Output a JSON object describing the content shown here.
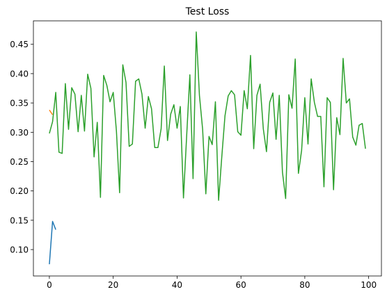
{
  "chart_data": {
    "type": "line",
    "title": "Test Loss",
    "xlabel": "",
    "ylabel": "",
    "xlim": [
      -5,
      104
    ],
    "ylim": [
      0.055,
      0.49
    ],
    "xticks": [
      0,
      20,
      40,
      60,
      80,
      100
    ],
    "yticks": [
      0.1,
      0.15,
      0.2,
      0.25,
      0.3,
      0.35,
      0.4,
      0.45
    ],
    "xtick_labels": [
      "0",
      "20",
      "40",
      "60",
      "80",
      "100"
    ],
    "ytick_labels": [
      "0.10",
      "0.15",
      "0.20",
      "0.25",
      "0.30",
      "0.35",
      "0.40",
      "0.45"
    ],
    "grid": false,
    "series": [
      {
        "color": "#1f77b4",
        "x": [
          0,
          1,
          2
        ],
        "y": [
          0.075,
          0.148,
          0.134
        ]
      },
      {
        "color": "#ff7f0e",
        "x": [
          0,
          1
        ],
        "y": [
          0.338,
          0.33
        ]
      },
      {
        "color": "#2ca02c",
        "x": [
          0,
          1,
          2,
          3,
          4,
          5,
          6,
          7,
          8,
          9,
          10,
          11,
          12,
          13,
          14,
          15,
          16,
          17,
          18,
          19,
          20,
          21,
          22,
          23,
          24,
          25,
          26,
          27,
          28,
          29,
          30,
          31,
          32,
          33,
          34,
          35,
          36,
          37,
          38,
          39,
          40,
          41,
          42,
          43,
          44,
          45,
          46,
          47,
          48,
          49,
          50,
          51,
          52,
          53,
          54,
          55,
          56,
          57,
          58,
          59,
          60,
          61,
          62,
          63,
          64,
          65,
          66,
          67,
          68,
          69,
          70,
          71,
          72,
          73,
          74,
          75,
          76,
          77,
          78,
          79,
          80,
          81,
          82,
          83,
          84,
          85,
          86,
          87,
          88,
          89,
          90,
          91,
          92,
          93,
          94,
          95,
          96,
          97,
          98,
          99
        ],
        "y": [
          0.298,
          0.318,
          0.368,
          0.266,
          0.264,
          0.383,
          0.305,
          0.376,
          0.365,
          0.301,
          0.363,
          0.302,
          0.399,
          0.375,
          0.258,
          0.317,
          0.189,
          0.397,
          0.38,
          0.352,
          0.368,
          0.302,
          0.197,
          0.415,
          0.385,
          0.276,
          0.28,
          0.387,
          0.391,
          0.365,
          0.307,
          0.361,
          0.34,
          0.274,
          0.274,
          0.306,
          0.413,
          0.286,
          0.331,
          0.347,
          0.307,
          0.344,
          0.188,
          0.294,
          0.398,
          0.221,
          0.471,
          0.363,
          0.305,
          0.195,
          0.293,
          0.279,
          0.352,
          0.184,
          0.258,
          0.328,
          0.362,
          0.371,
          0.364,
          0.301,
          0.295,
          0.371,
          0.34,
          0.431,
          0.272,
          0.363,
          0.382,
          0.306,
          0.267,
          0.351,
          0.367,
          0.288,
          0.363,
          0.232,
          0.187,
          0.364,
          0.341,
          0.425,
          0.23,
          0.269,
          0.359,
          0.28,
          0.391,
          0.351,
          0.327,
          0.327,
          0.207,
          0.359,
          0.351,
          0.202,
          0.325,
          0.296,
          0.426,
          0.35,
          0.357,
          0.292,
          0.278,
          0.312,
          0.315,
          0.272
        ]
      }
    ]
  }
}
